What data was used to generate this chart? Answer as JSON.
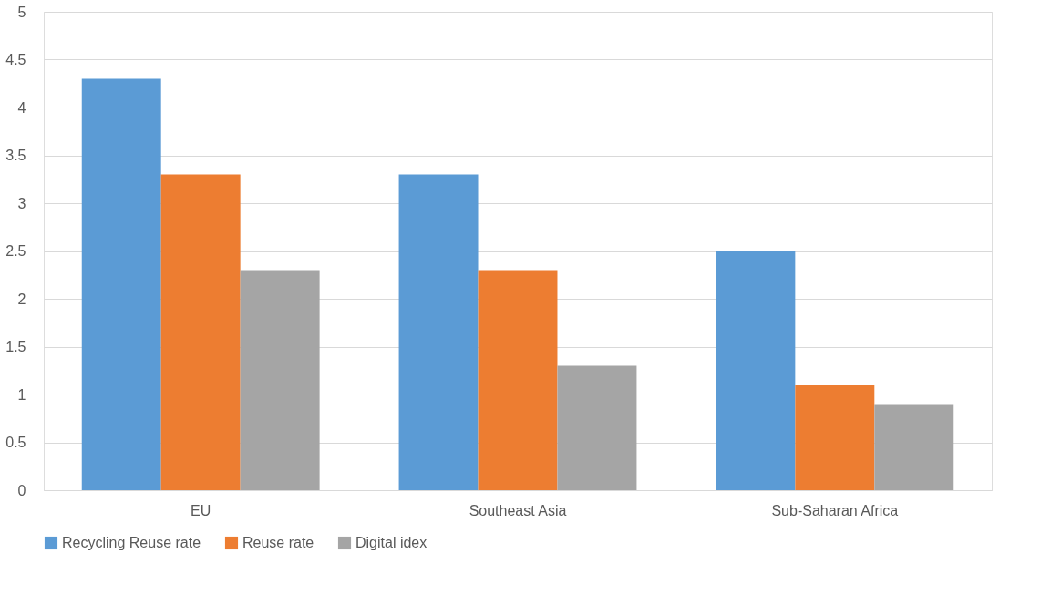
{
  "chart_data": {
    "type": "bar",
    "categories": [
      "EU",
      "Southeast Asia",
      "Sub-Saharan Africa"
    ],
    "series": [
      {
        "name": "Recycling Reuse rate",
        "color": "#5b9bd5",
        "values": [
          4.3,
          3.3,
          2.5
        ]
      },
      {
        "name": "Reuse rate",
        "color": "#ed7d31",
        "values": [
          3.3,
          2.3,
          1.1
        ]
      },
      {
        "name": "Digital idex",
        "color": "#a5a5a5",
        "values": [
          2.3,
          1.3,
          0.9
        ]
      }
    ],
    "ylim": [
      0,
      5
    ],
    "yticks": [
      0,
      0.5,
      1,
      1.5,
      2,
      2.5,
      3,
      3.5,
      4,
      4.5,
      5
    ],
    "grid": "y",
    "legend": "bottom"
  }
}
